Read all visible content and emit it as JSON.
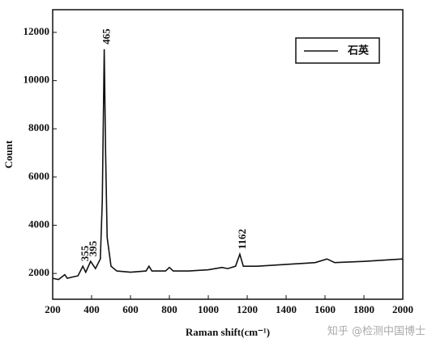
{
  "chart_data": {
    "type": "line",
    "x_label": "Raman shift(cm⁻¹)",
    "y_label": "Count",
    "x": [
      200,
      230,
      262,
      275,
      300,
      330,
      355,
      370,
      395,
      420,
      445,
      455,
      465,
      472,
      480,
      500,
      530,
      600,
      680,
      695,
      710,
      780,
      800,
      820,
      900,
      1000,
      1070,
      1100,
      1140,
      1162,
      1180,
      1250,
      1350,
      1450,
      1550,
      1610,
      1650,
      1800,
      1900,
      2000
    ],
    "series": [
      {
        "name": "石英",
        "color": "#111111",
        "values": [
          1800,
          1750,
          1950,
          1800,
          1850,
          1900,
          2300,
          2050,
          2500,
          2200,
          2600,
          5000,
          11300,
          7000,
          3500,
          2300,
          2100,
          2050,
          2100,
          2300,
          2100,
          2100,
          2250,
          2100,
          2100,
          2150,
          2250,
          2200,
          2300,
          2800,
          2300,
          2300,
          2350,
          2400,
          2450,
          2600,
          2450,
          2500,
          2550,
          2600
        ]
      }
    ],
    "annotations": [
      {
        "text": "355",
        "x": 355
      },
      {
        "text": "395",
        "x": 395
      },
      {
        "text": "465",
        "x": 465
      },
      {
        "text": "1162",
        "x": 1162
      }
    ],
    "xlim": [
      200,
      2000
    ],
    "xticks": [
      200,
      400,
      600,
      800,
      1000,
      1200,
      1400,
      1600,
      1800,
      2000
    ],
    "ylim": [
      930,
      12940
    ],
    "yticks": [
      2000,
      4000,
      6000,
      8000,
      10000,
      12000
    ],
    "legend": "upper right",
    "watermark": "知乎 @检测中国博士"
  }
}
